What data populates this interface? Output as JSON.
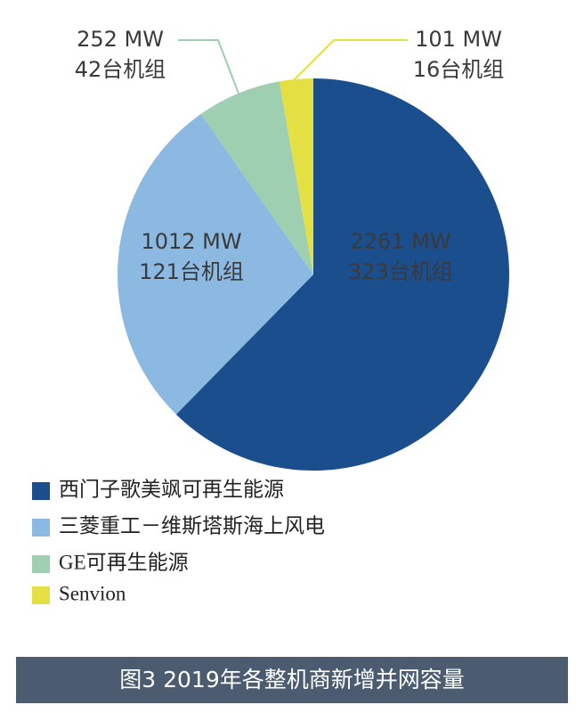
{
  "chart_data": {
    "type": "pie",
    "categories": [
      "西门子歌美飒可再生能源",
      "三菱重工－维斯塔斯海上风电",
      "GE可再生能源",
      "Senvion"
    ],
    "values": [
      2261,
      1012,
      252,
      101
    ],
    "value_labels": [
      "2261 MW",
      "1012 MW",
      "252 MW",
      "101 MW"
    ],
    "counts": [
      323,
      121,
      42,
      16
    ],
    "count_labels": [
      "323台机组",
      "121台机组",
      "42台机组",
      "16台机组"
    ],
    "colors": [
      "#1b4e8c",
      "#8cb9e1",
      "#9ecfb1",
      "#e4e044"
    ],
    "caption": "图3 2019年各整机商新增并网容量"
  }
}
